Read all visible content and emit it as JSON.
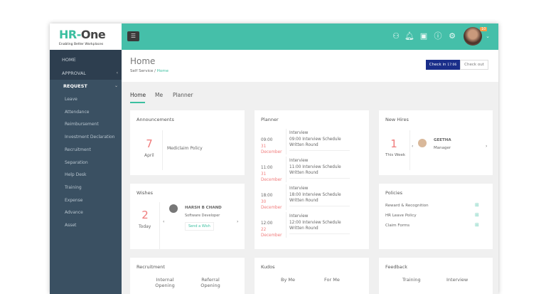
{
  "logo": {
    "text_a": "HR-",
    "text_b": "One",
    "tagline": "Enabling Better Workplaces"
  },
  "topbar": {
    "notification_count": "10",
    "icons": [
      "team-icon",
      "bell-icon",
      "id-card-icon",
      "help-icon",
      "gear-icon"
    ]
  },
  "sidebar": {
    "items": [
      {
        "label": "HOME"
      },
      {
        "label": "APPROVAL"
      },
      {
        "label": "REQUEST"
      }
    ],
    "subitems": [
      "Leave",
      "Attendance",
      "Reimbursement",
      "Investment Declaration",
      "Recruitment",
      "Separation",
      "Help Desk",
      "Training",
      "Expense",
      "Advance",
      "Asset"
    ]
  },
  "page": {
    "title": "Home",
    "breadcrumb": [
      "Self Service",
      "Home"
    ],
    "checkin_label": "Check in",
    "checkin_time": "17:06",
    "checkout_label": "Check out"
  },
  "tabs": [
    "Home",
    "Me",
    "Planner"
  ],
  "announcements": {
    "title": "Announcements",
    "day": "7",
    "month": "April",
    "item": "Mediclaim Policy"
  },
  "wishes": {
    "title": "Wishes",
    "count": "2",
    "when": "Today",
    "name": "HARSH B CHAND",
    "role": "Software Developer",
    "button": "Send a Wish"
  },
  "planner": {
    "title": "Planner",
    "items": [
      {
        "time": "09:00",
        "day": "31",
        "month": "December",
        "type": "Interview",
        "line1": "09:00 Interview Schedule",
        "line2": "Written Round"
      },
      {
        "time": "11:00",
        "day": "31",
        "month": "December",
        "type": "Interview",
        "line1": "11:00 Interview Schedule",
        "line2": "Written Round"
      },
      {
        "time": "18:00",
        "day": "30",
        "month": "December",
        "type": "Interview",
        "line1": "18:00 Interview Schedule",
        "line2": "Written Round"
      },
      {
        "time": "12:00",
        "day": "22",
        "month": "December",
        "type": "Interview",
        "line1": "12:00 Interview Schedule",
        "line2": "Written Round"
      }
    ]
  },
  "new_hires": {
    "title": "New Hires",
    "count": "1",
    "when": "This Week",
    "name": "GEETHA",
    "role": "Manager"
  },
  "policies": {
    "title": "Policies",
    "items": [
      "Reward & Recognition",
      "HR Leave Policy",
      "Claim Forms"
    ]
  },
  "recruitment": {
    "title": "Recruitment",
    "cols": [
      "Internal Opening",
      "Referral Opening"
    ]
  },
  "kudos": {
    "title": "Kudos",
    "cols": [
      "By Me",
      "For Me"
    ]
  },
  "feedback": {
    "title": "Feedback",
    "cols": [
      "Training",
      "Interview"
    ]
  },
  "colors": {
    "accent": "#45bfa9",
    "sidebar": "#2d3e4f",
    "checkin": "#1a2e8a",
    "highlight": "#f07b7b"
  }
}
